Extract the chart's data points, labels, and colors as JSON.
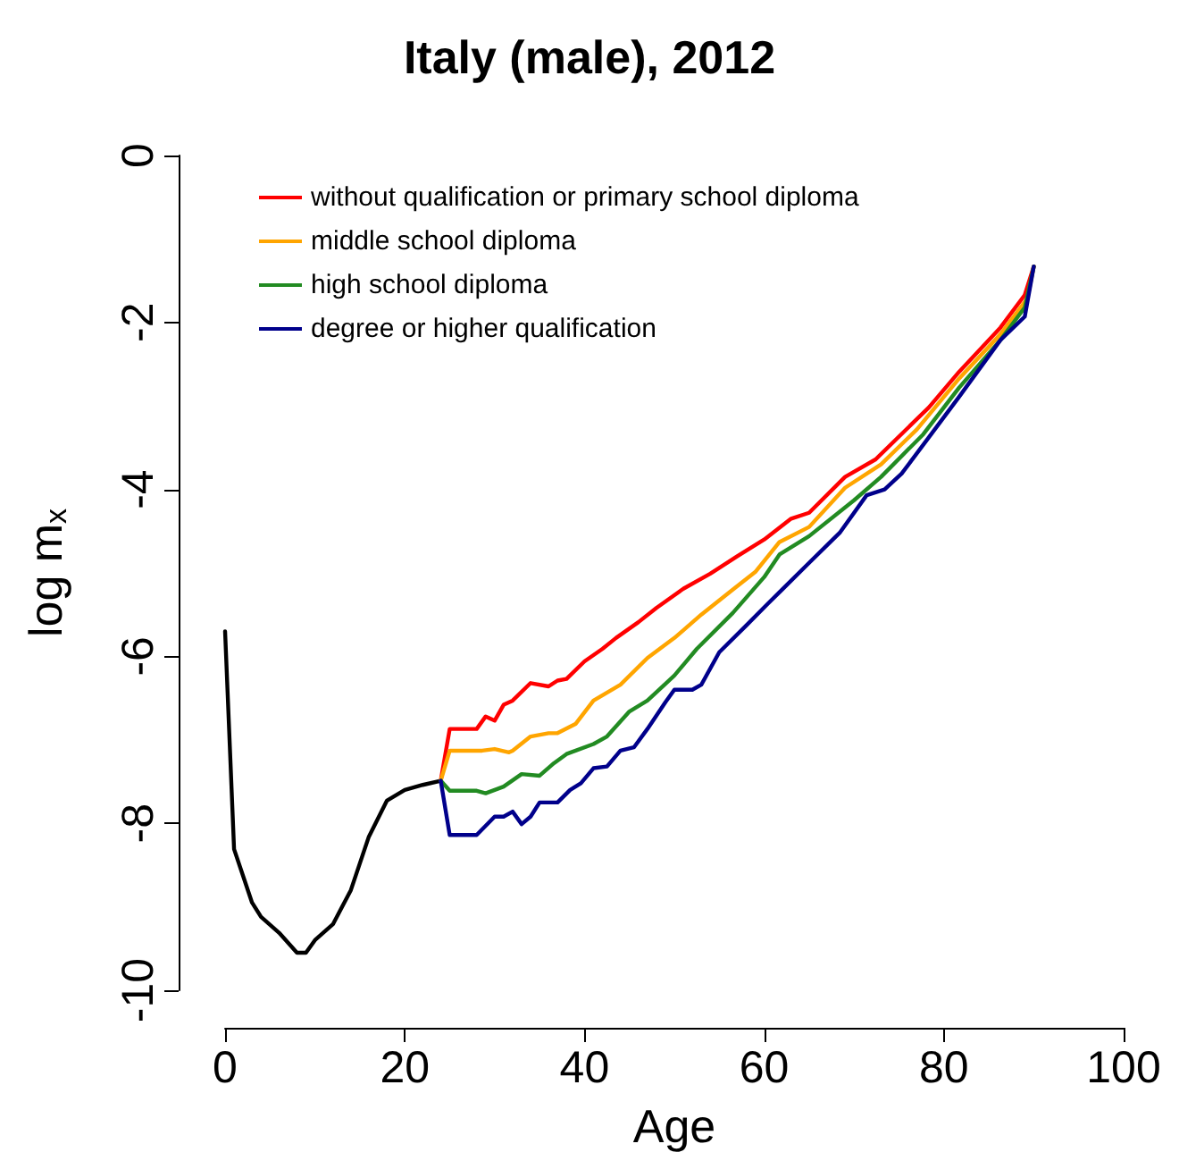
{
  "chart_data": {
    "type": "line",
    "title": "Italy (male), 2012",
    "xlabel": "Age",
    "ylabel": "log m$_{x}$",
    "xlim": [
      0,
      100
    ],
    "xticks": [
      0,
      20,
      40,
      60,
      80,
      100
    ],
    "ylim": [
      -10,
      0
    ],
    "yticks": [
      -10,
      -8,
      -6,
      -4,
      -2,
      0
    ],
    "grid": false,
    "legend": "top left",
    "marker": "none",
    "line_style": "solid",
    "series": [
      {
        "color": "#000000",
        "x": [
          0,
          1,
          2,
          3,
          4,
          6,
          8,
          9,
          10,
          12,
          14,
          16,
          18,
          20,
          22,
          24
        ],
        "values": [
          -5.7,
          -8.31,
          -8.63,
          -8.95,
          -9.12,
          -9.31,
          -9.55,
          -9.55,
          -9.4,
          -9.21,
          -8.8,
          -8.16,
          -7.73,
          -7.6,
          -7.54,
          -7.49
        ]
      },
      {
        "name": "without qualification or primary school diploma",
        "color": "#ff0000",
        "x": [
          24,
          25,
          28,
          29,
          30,
          31,
          32,
          34,
          36,
          37,
          38,
          40,
          42,
          43.5,
          46,
          48,
          51,
          54,
          57,
          60,
          63,
          65,
          69,
          72.4,
          76.3,
          78.3,
          81.7,
          86.3,
          89,
          90
        ],
        "values": [
          -7.49,
          -6.87,
          -6.87,
          -6.72,
          -6.77,
          -6.58,
          -6.53,
          -6.32,
          -6.36,
          -6.29,
          -6.27,
          -6.06,
          -5.91,
          -5.78,
          -5.59,
          -5.42,
          -5.19,
          -5.01,
          -4.8,
          -4.6,
          -4.35,
          -4.28,
          -3.85,
          -3.64,
          -3.23,
          -3.02,
          -2.59,
          -2.06,
          -1.67,
          -1.33
        ]
      },
      {
        "name": "middle school diploma",
        "color": "#ffa500",
        "x": [
          24,
          25,
          28.6,
          30,
          31.6,
          32,
          34,
          36,
          37,
          39,
          41,
          44,
          47,
          50,
          53,
          56.5,
          59,
          61.7,
          65,
          69,
          73,
          77,
          81.7,
          86.3,
          89.3,
          90
        ],
        "values": [
          -7.49,
          -7.13,
          -7.13,
          -7.11,
          -7.15,
          -7.13,
          -6.96,
          -6.92,
          -6.92,
          -6.81,
          -6.53,
          -6.34,
          -6.02,
          -5.78,
          -5.5,
          -5.2,
          -4.99,
          -4.63,
          -4.45,
          -3.98,
          -3.7,
          -3.28,
          -2.67,
          -2.14,
          -1.71,
          -1.33
        ]
      },
      {
        "name": "high school diploma",
        "color": "#228b22",
        "x": [
          24,
          25,
          28,
          29,
          31,
          33,
          35,
          36.6,
          38,
          41,
          42.5,
          45,
          47,
          50,
          52.5,
          56.5,
          60,
          61.7,
          65,
          70,
          73,
          77.7,
          81.7,
          86.3,
          89,
          90
        ],
        "values": [
          -7.49,
          -7.61,
          -7.61,
          -7.64,
          -7.56,
          -7.41,
          -7.43,
          -7.28,
          -7.17,
          -7.05,
          -6.96,
          -6.66,
          -6.53,
          -6.23,
          -5.91,
          -5.48,
          -5.05,
          -4.78,
          -4.56,
          -4.13,
          -3.85,
          -3.34,
          -2.78,
          -2.21,
          -1.82,
          -1.33
        ]
      },
      {
        "name": "degree or higher qualification",
        "color": "#00008b",
        "x": [
          24,
          25,
          28,
          30,
          31,
          32,
          33,
          34,
          35,
          37,
          38.4,
          39.6,
          41,
          42.5,
          44,
          45.5,
          47,
          49,
          50,
          52,
          53,
          55,
          58,
          60.4,
          62,
          65,
          68.4,
          71.4,
          73.4,
          75.3,
          78.3,
          81.7,
          86.3,
          89,
          90
        ],
        "values": [
          -7.49,
          -8.14,
          -8.14,
          -7.92,
          -7.92,
          -7.86,
          -8.01,
          -7.92,
          -7.75,
          -7.75,
          -7.6,
          -7.52,
          -7.34,
          -7.32,
          -7.13,
          -7.09,
          -6.87,
          -6.55,
          -6.4,
          -6.4,
          -6.34,
          -5.95,
          -5.63,
          -5.37,
          -5.2,
          -4.88,
          -4.52,
          -4.07,
          -4.0,
          -3.81,
          -3.38,
          -2.89,
          -2.21,
          -1.93,
          -1.33
        ]
      }
    ]
  }
}
